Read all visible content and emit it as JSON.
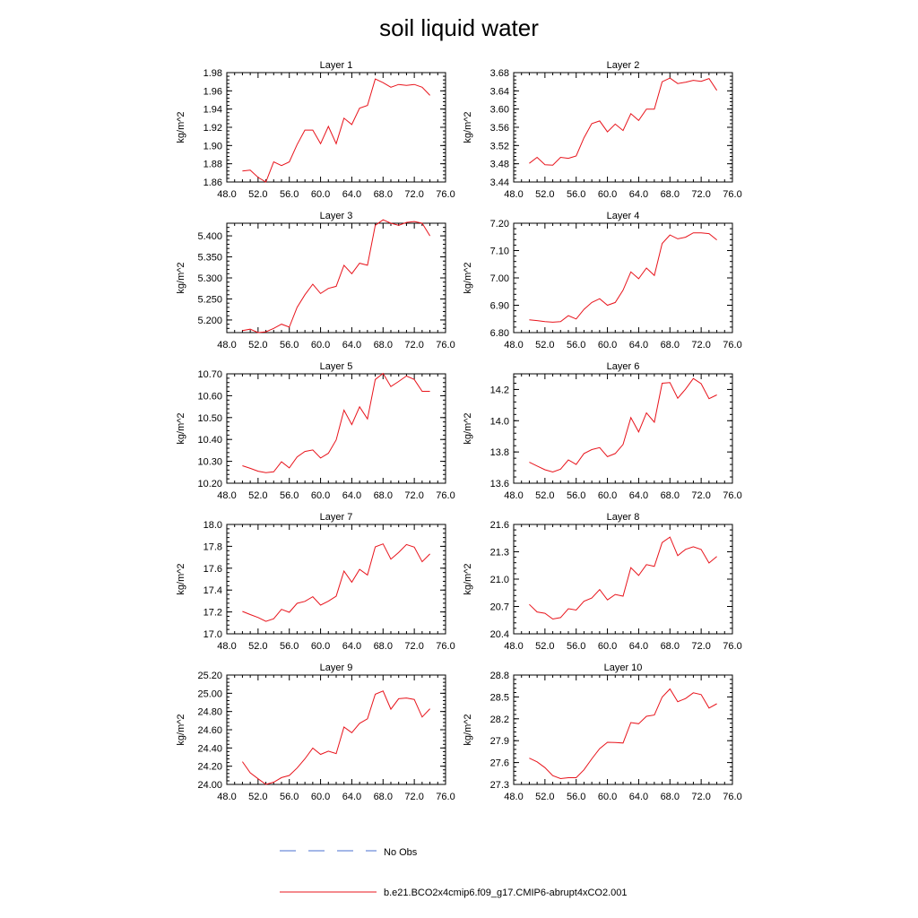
{
  "title": "soil liquid water",
  "legend": {
    "entries": [
      {
        "label": "No Obs",
        "color": "#4a6fd0",
        "style": "dashed"
      },
      {
        "label": "b.e21.BCO2x4cmip6.f09_g17.CMIP6-abrupt4xCO2.001",
        "color": "#e8141c",
        "style": "solid"
      }
    ]
  },
  "chart_data": {
    "type": "line",
    "title": "soil liquid water",
    "x": [
      50,
      51,
      52,
      53,
      54,
      55,
      56,
      57,
      58,
      59,
      60,
      61,
      62,
      63,
      64,
      65,
      66,
      67,
      68,
      69,
      70,
      71,
      72,
      73,
      74
    ],
    "xlim": [
      48,
      76
    ],
    "xticks": [
      "48.0",
      "52.0",
      "56.0",
      "60.0",
      "64.0",
      "68.0",
      "72.0",
      "76.0"
    ],
    "series_name": "b.e21.BCO2x4cmip6.f09_g17.CMIP6-abrupt4xCO2.001",
    "line_color": "#e8141c",
    "panels": [
      {
        "title": "Layer 1",
        "ylabel": "kg/m^2",
        "ylim": [
          1.86,
          1.98
        ],
        "yticks": [
          "1.86",
          "1.88",
          "1.90",
          "1.92",
          "1.94",
          "1.96",
          "1.98"
        ],
        "values": [
          1.872,
          1.873,
          1.865,
          1.86,
          1.882,
          1.878,
          1.882,
          1.901,
          1.917,
          1.917,
          1.902,
          1.921,
          1.902,
          1.93,
          1.923,
          1.941,
          1.944,
          1.973,
          1.969,
          1.964,
          1.967,
          1.966,
          1.967,
          1.964,
          1.955
        ]
      },
      {
        "title": "Layer 2",
        "ylabel": "kg/m^2",
        "ylim": [
          3.44,
          3.68
        ],
        "yticks": [
          "3.44",
          "3.48",
          "3.52",
          "3.56",
          "3.60",
          "3.64",
          "3.68"
        ],
        "values": [
          3.481,
          3.494,
          3.478,
          3.477,
          3.494,
          3.492,
          3.497,
          3.537,
          3.568,
          3.574,
          3.55,
          3.567,
          3.553,
          3.59,
          3.575,
          3.6,
          3.6,
          3.66,
          3.668,
          3.656,
          3.659,
          3.663,
          3.661,
          3.667,
          3.641
        ]
      },
      {
        "title": "Layer 3",
        "ylabel": "kg/m^2",
        "ylim": [
          5.17,
          5.43
        ],
        "yticks": [
          "5.200",
          "5.250",
          "5.300",
          "5.350",
          "5.400"
        ],
        "values": [
          5.175,
          5.178,
          5.17,
          5.172,
          5.18,
          5.19,
          5.183,
          5.23,
          5.26,
          5.285,
          5.263,
          5.275,
          5.28,
          5.33,
          5.31,
          5.335,
          5.33,
          5.425,
          5.438,
          5.43,
          5.425,
          5.432,
          5.434,
          5.43,
          5.4
        ]
      },
      {
        "title": "Layer 4",
        "ylabel": "kg/m^2",
        "ylim": [
          6.8,
          7.2
        ],
        "yticks": [
          "6.80",
          "6.90",
          "7.00",
          "7.10",
          "7.20"
        ],
        "values": [
          6.847,
          6.844,
          6.84,
          6.838,
          6.84,
          6.862,
          6.85,
          6.885,
          6.91,
          6.924,
          6.9,
          6.91,
          6.955,
          7.022,
          6.997,
          7.036,
          7.009,
          7.126,
          7.157,
          7.143,
          7.149,
          7.165,
          7.165,
          7.162,
          7.139
        ]
      },
      {
        "title": "Layer 5",
        "ylabel": "kg/m^2",
        "ylim": [
          10.2,
          10.7
        ],
        "yticks": [
          "10.20",
          "10.30",
          "10.40",
          "10.50",
          "10.60",
          "10.70"
        ],
        "values": [
          10.28,
          10.268,
          10.255,
          10.248,
          10.252,
          10.298,
          10.27,
          10.32,
          10.345,
          10.352,
          10.315,
          10.337,
          10.398,
          10.534,
          10.468,
          10.549,
          10.494,
          10.674,
          10.702,
          10.642,
          10.665,
          10.69,
          10.674,
          10.62,
          10.62
        ]
      },
      {
        "title": "Layer 6",
        "ylabel": "kg/m^2",
        "ylim": [
          13.6,
          14.3
        ],
        "yticks": [
          "13.6",
          "13.8",
          "14.0",
          "14.2"
        ],
        "values": [
          13.734,
          13.71,
          13.686,
          13.672,
          13.69,
          13.749,
          13.72,
          13.79,
          13.815,
          13.828,
          13.77,
          13.79,
          13.848,
          14.02,
          13.928,
          14.05,
          13.99,
          14.24,
          14.244,
          14.144,
          14.202,
          14.27,
          14.237,
          14.141,
          14.165
        ]
      },
      {
        "title": "Layer 7",
        "ylabel": "kg/m^2",
        "ylim": [
          17.0,
          18.0
        ],
        "yticks": [
          "17.0",
          "17.2",
          "17.4",
          "17.6",
          "17.8",
          "18.0"
        ],
        "values": [
          17.205,
          17.176,
          17.149,
          17.114,
          17.138,
          17.224,
          17.197,
          17.279,
          17.297,
          17.339,
          17.262,
          17.298,
          17.344,
          17.574,
          17.472,
          17.589,
          17.538,
          17.795,
          17.822,
          17.683,
          17.744,
          17.816,
          17.793,
          17.659,
          17.73
        ]
      },
      {
        "title": "Layer 8",
        "ylabel": "kg/m^2",
        "ylim": [
          20.4,
          21.6
        ],
        "yticks": [
          "20.4",
          "20.7",
          "21.0",
          "21.3",
          "21.6"
        ],
        "values": [
          20.723,
          20.64,
          20.625,
          20.562,
          20.578,
          20.675,
          20.661,
          20.757,
          20.792,
          20.886,
          20.772,
          20.832,
          20.813,
          21.126,
          21.04,
          21.159,
          21.14,
          21.401,
          21.461,
          21.258,
          21.327,
          21.355,
          21.326,
          21.177,
          21.248
        ]
      },
      {
        "title": "Layer 9",
        "ylabel": "kg/m^2",
        "ylim": [
          24.0,
          25.2
        ],
        "yticks": [
          "24.00",
          "24.20",
          "24.40",
          "24.60",
          "24.80",
          "25.00",
          "25.20"
        ],
        "values": [
          24.25,
          24.128,
          24.062,
          24.0,
          24.025,
          24.075,
          24.098,
          24.18,
          24.28,
          24.398,
          24.33,
          24.365,
          24.338,
          24.63,
          24.568,
          24.67,
          24.72,
          24.99,
          25.025,
          24.825,
          24.94,
          24.948,
          24.932,
          24.74,
          24.83
        ]
      },
      {
        "title": "Layer 10",
        "ylabel": "kg/m^2",
        "ylim": [
          27.3,
          28.8
        ],
        "yticks": [
          "27.3",
          "27.6",
          "27.9",
          "28.2",
          "28.5",
          "28.8"
        ],
        "values": [
          27.66,
          27.61,
          27.53,
          27.42,
          27.38,
          27.392,
          27.392,
          27.501,
          27.65,
          27.79,
          27.878,
          27.875,
          27.868,
          28.148,
          28.132,
          28.235,
          28.252,
          28.498,
          28.61,
          28.435,
          28.478,
          28.556,
          28.532,
          28.348,
          28.406
        ]
      }
    ]
  }
}
